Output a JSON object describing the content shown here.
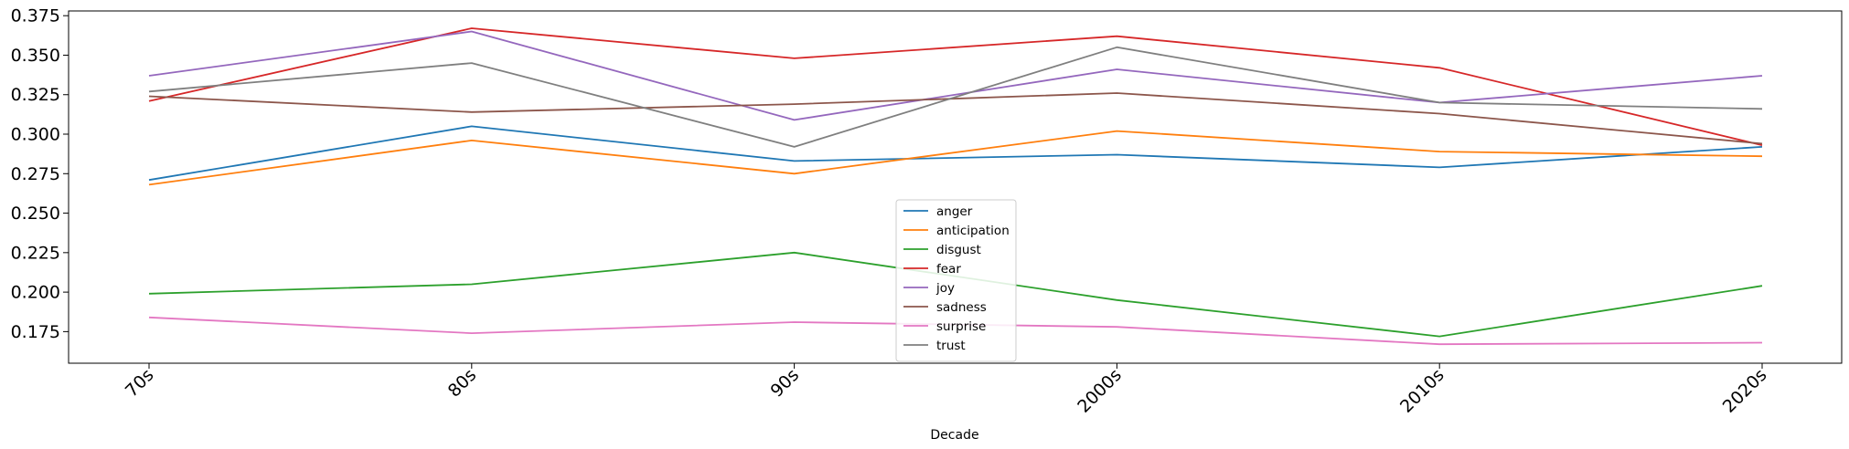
{
  "chart_data": {
    "type": "line",
    "title": "",
    "xlabel": "Decade",
    "ylabel": "",
    "categories": [
      "70s",
      "80s",
      "90s",
      "2000s",
      "2010s",
      "2020s"
    ],
    "ylim": [
      0.155,
      0.378
    ],
    "yticks": [
      0.175,
      0.2,
      0.225,
      0.25,
      0.275,
      0.3,
      0.325,
      0.35,
      0.375
    ],
    "ytick_labels": [
      "0.175",
      "0.200",
      "0.225",
      "0.250",
      "0.275",
      "0.300",
      "0.325",
      "0.350",
      "0.375"
    ],
    "grid": false,
    "legend_position": "lower-center",
    "series": [
      {
        "name": "anger",
        "color": "#1f77b4",
        "values": [
          0.271,
          0.305,
          0.283,
          0.287,
          0.279,
          0.292
        ]
      },
      {
        "name": "anticipation",
        "color": "#ff7f0e",
        "values": [
          0.268,
          0.296,
          0.275,
          0.302,
          0.289,
          0.286
        ]
      },
      {
        "name": "disgust",
        "color": "#2ca02c",
        "values": [
          0.199,
          0.205,
          0.225,
          0.195,
          0.172,
          0.204
        ]
      },
      {
        "name": "fear",
        "color": "#d62728",
        "values": [
          0.321,
          0.367,
          0.348,
          0.362,
          0.342,
          0.293
        ]
      },
      {
        "name": "joy",
        "color": "#9467bd",
        "values": [
          0.337,
          0.365,
          0.309,
          0.341,
          0.32,
          0.337
        ]
      },
      {
        "name": "sadness",
        "color": "#8c564b",
        "values": [
          0.324,
          0.314,
          0.319,
          0.326,
          0.313,
          0.294
        ]
      },
      {
        "name": "surprise",
        "color": "#e377c2",
        "values": [
          0.184,
          0.174,
          0.181,
          0.178,
          0.167,
          0.168
        ]
      },
      {
        "name": "trust",
        "color": "#7f7f7f",
        "values": [
          0.327,
          0.345,
          0.292,
          0.355,
          0.32,
          0.316
        ]
      }
    ]
  }
}
